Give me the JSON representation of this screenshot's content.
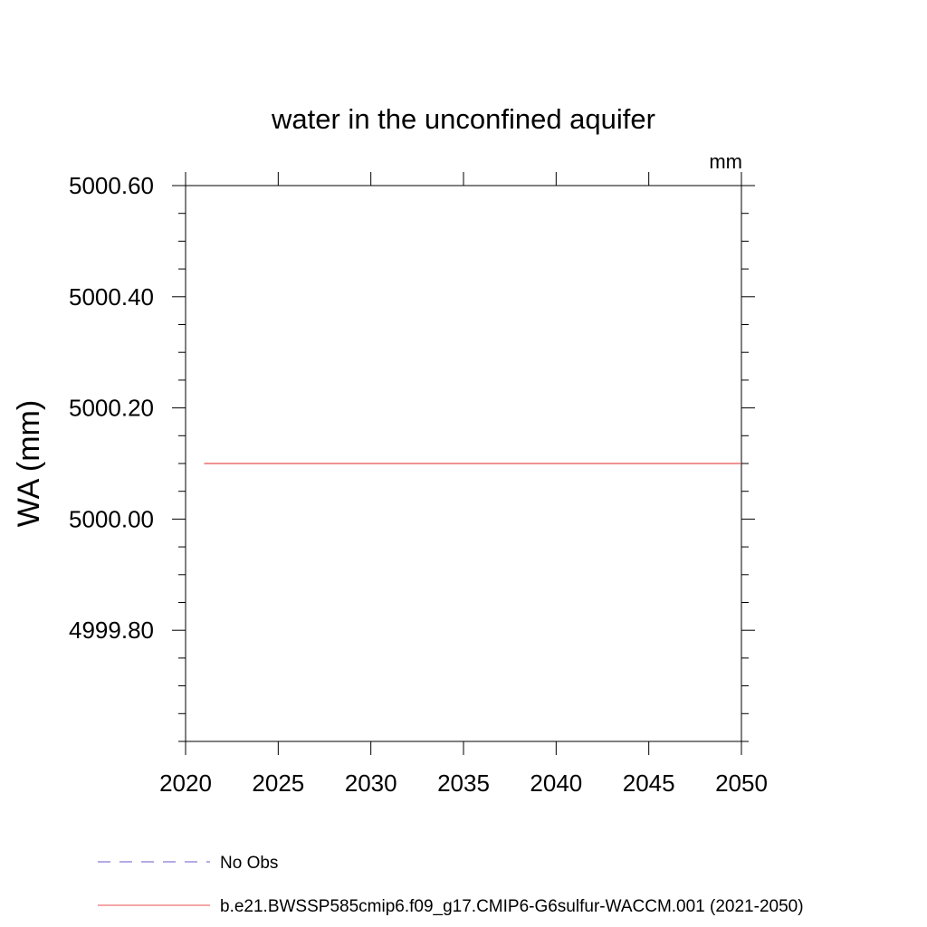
{
  "chart_data": {
    "type": "line",
    "title": "water in the unconfined aquifer",
    "units_label": "mm",
    "ylabel": "WA  (mm)",
    "xlabel": "",
    "xlim": [
      2020,
      2050
    ],
    "ylim": [
      4999.6,
      5000.6
    ],
    "x_ticks": [
      2020,
      2025,
      2030,
      2035,
      2040,
      2045,
      2050
    ],
    "x_tick_labels": [
      "2020",
      "2025",
      "2030",
      "2035",
      "2040",
      "2045",
      "2050"
    ],
    "y_ticks": [
      4999.8,
      5000.0,
      5000.2,
      5000.4,
      5000.6
    ],
    "y_tick_labels": [
      "4999.80",
      "5000.00",
      "5000.20",
      "5000.40",
      "5000.60"
    ],
    "series": [
      {
        "name": "b.e21.BWSSP585cmip6.f09_g17.CMIP6-G6sulfur-WACCM.001 (2021-2050)",
        "color": "#e8504f",
        "style": "solid",
        "x": [
          2021,
          2050
        ],
        "y": [
          5000.1,
          5000.1
        ]
      }
    ],
    "legend": [
      {
        "label": "No Obs",
        "color": "#6a5acd",
        "style": "dashed"
      },
      {
        "label": "b.e21.BWSSP585cmip6.f09_g17.CMIP6-G6sulfur-WACCM.001 (2021-2050)",
        "color": "#e8504f",
        "style": "solid"
      }
    ],
    "legend_placement": "bottom-left",
    "grid": false
  }
}
